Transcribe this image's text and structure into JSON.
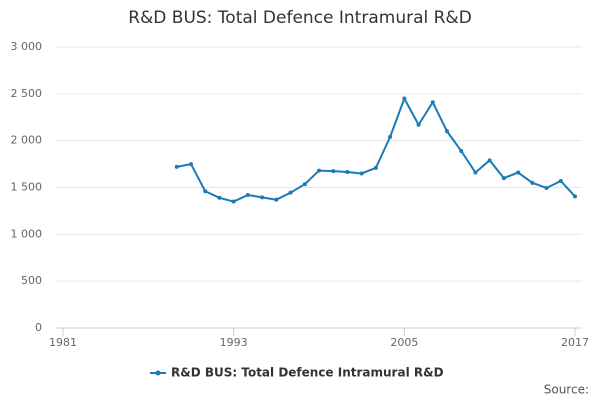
{
  "chart_data": {
    "type": "line",
    "title": "R&D BUS: Total Defence Intramural R&D",
    "x": [
      1989,
      1990,
      1991,
      1992,
      1993,
      1994,
      1995,
      1996,
      1997,
      1998,
      1999,
      2000,
      2001,
      2002,
      2003,
      2004,
      2005,
      2006,
      2007,
      2008,
      2009,
      2010,
      2011,
      2012,
      2013,
      2014,
      2015,
      2016,
      2017
    ],
    "series": [
      {
        "name": "R&D BUS: Total Defence Intramural R&D",
        "color": "#1a7bb9",
        "values": [
          1720,
          1750,
          1460,
          1390,
          1350,
          1420,
          1395,
          1370,
          1445,
          1535,
          1680,
          1675,
          1665,
          1650,
          1710,
          2040,
          2450,
          2170,
          2410,
          2100,
          1890,
          1660,
          1790,
          1600,
          1660,
          1550,
          1495,
          1570,
          1405
        ]
      }
    ],
    "xlim": [
      1981,
      2017
    ],
    "xticks": [
      1981,
      1993,
      2005,
      2017
    ],
    "ylim": [
      0,
      3000
    ],
    "yticks": [
      0,
      500,
      {
        "value": 1000,
        "label": "1 000"
      },
      {
        "value": 1500,
        "label": "1 500"
      },
      {
        "value": 2000,
        "label": "2 000"
      },
      {
        "value": 2500,
        "label": "2 500"
      },
      {
        "value": 3000,
        "label": "3 000"
      }
    ],
    "grid": true,
    "legend": "bottom",
    "source": "Source:"
  }
}
